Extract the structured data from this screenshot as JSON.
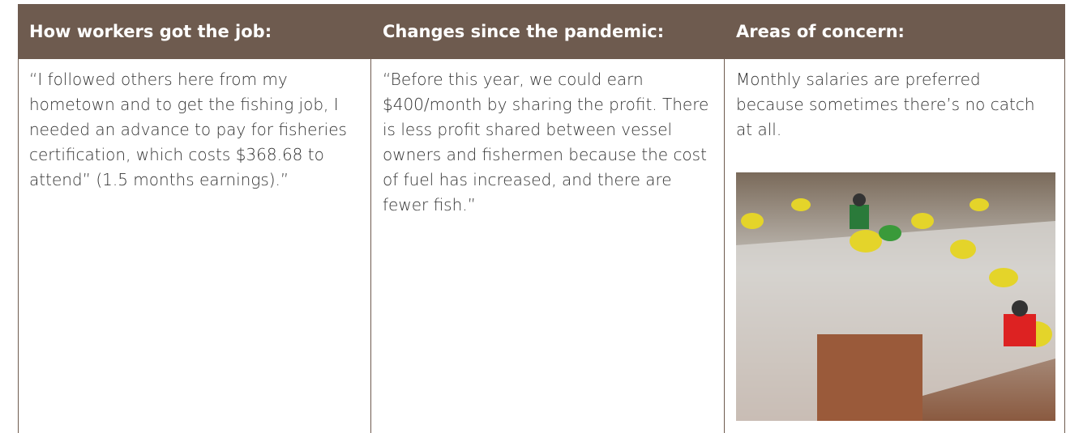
{
  "table": {
    "headers": [
      "How workers got the job:",
      "Changes since the pandemic:",
      "Areas of concern:"
    ],
    "rows": [
      [
        "“I followed others here from my hometown and to get the fishing job, I needed an advance to pay for fisheries certification, which costs $368.68 to attend” (1.5 months earnings).”",
        "“Before this year, we could earn $400/month by sharing the profit. There is less profit shared between vessel owners and fishermen because the cost of fuel has increased, and there are fewer fish.”",
        "Monthly salaries are preferred because sometimes there’s no catch at all."
      ]
    ]
  }
}
